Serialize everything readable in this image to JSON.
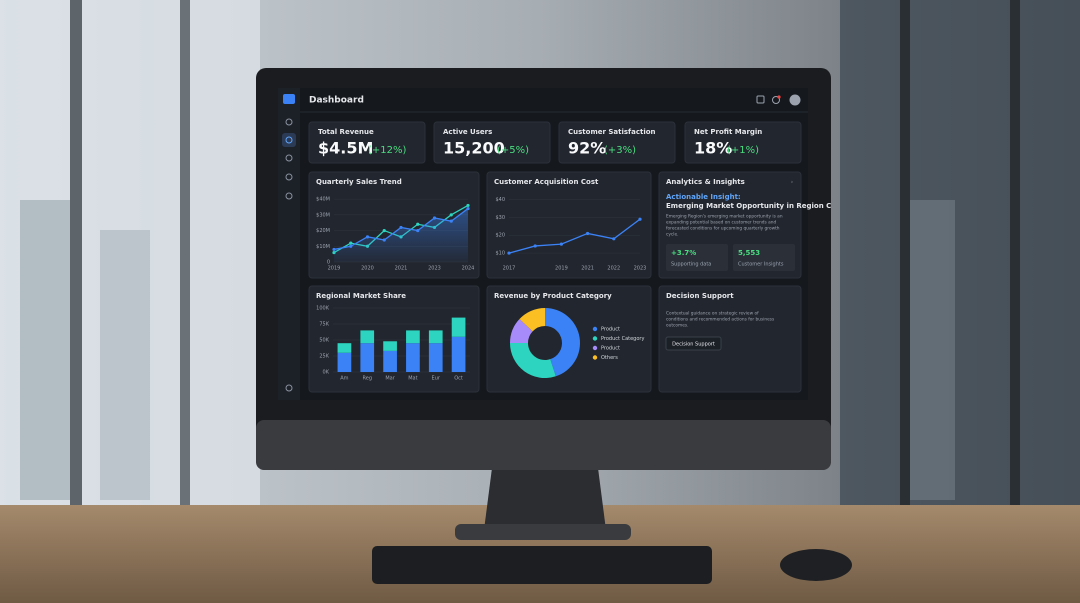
{
  "header": {
    "title": "Dashboard"
  },
  "kpis": [
    {
      "label": "Total Revenue",
      "value": "$4.5M",
      "delta": "(+12%)"
    },
    {
      "label": "Active Users",
      "value": "15,200",
      "delta": "(+5%)"
    },
    {
      "label": "Customer Satisfaction",
      "value": "92%",
      "delta": "(+3%)"
    },
    {
      "label": "Net Profit Margin",
      "value": "18%",
      "delta": "(+1%)"
    }
  ],
  "quarterly_sales": {
    "type": "line",
    "title": "Quarterly Sales Trend",
    "categories": [
      "2019",
      null,
      "2020",
      null,
      "2021",
      null,
      "2023",
      null,
      "2024"
    ],
    "series": [
      {
        "color": "#2dd4bf",
        "values": [
          6,
          12,
          10,
          20,
          16,
          24,
          22,
          30,
          36
        ]
      },
      {
        "color": "#3b82f6",
        "values": [
          8,
          10,
          16,
          14,
          22,
          20,
          28,
          26,
          34
        ],
        "area": true
      }
    ],
    "ylim": [
      0,
      42
    ],
    "yticks": [
      0,
      {
        "value": 10,
        "label": "$10M"
      },
      {
        "value": 20,
        "label": "$20M"
      },
      {
        "value": 30,
        "label": "$30M"
      },
      {
        "value": 40,
        "label": "$40M"
      }
    ],
    "grid": true
  },
  "acquisition_cost": {
    "type": "line",
    "title": "Customer Acquisition Cost",
    "categories": [
      "2017",
      null,
      "2019",
      "2021",
      "2022",
      "2023"
    ],
    "series": [
      {
        "color": "#3b82f6",
        "values": [
          10,
          14,
          15,
          21,
          18,
          29
        ]
      }
    ],
    "ylim": [
      5,
      42
    ],
    "yticks": [
      {
        "value": 10,
        "label": "$10"
      },
      {
        "value": 20,
        "label": "$20"
      },
      {
        "value": 30,
        "label": "$30"
      },
      {
        "value": 40,
        "label": "$40"
      }
    ],
    "grid": true
  },
  "insights": {
    "title": "Analytics & Insights",
    "tag": "Actionable Insight:",
    "headline": "Emerging Market Opportunity in Region C",
    "body": [
      "Emerging Region's emerging market opportunity is an",
      "expanding potential based on customer trends and",
      "forecasted conditions for upcoming quarterly growth",
      "cycle."
    ],
    "stats": [
      {
        "value": "+3.7%",
        "label": "Supporting data"
      },
      {
        "value": "5,553",
        "label": "Customer Insights"
      }
    ]
  },
  "regional_share": {
    "type": "bar",
    "stacked": true,
    "title": "Regional Market Share",
    "categories": [
      "Am",
      "Reg",
      "Mar",
      "Mat",
      "Eur",
      "Oct"
    ],
    "series": [
      {
        "color": "#3b82f6",
        "values": [
          30,
          45,
          33,
          45,
          45,
          55
        ]
      },
      {
        "color": "#2dd4bf",
        "values": [
          15,
          20,
          15,
          20,
          20,
          30
        ]
      }
    ],
    "ylim": [
      0,
      100
    ],
    "yticks": [
      {
        "value": 0,
        "label": "0K"
      },
      {
        "value": 25,
        "label": "25K"
      },
      {
        "value": 50,
        "label": "50K"
      },
      {
        "value": 75,
        "label": "75K"
      },
      {
        "value": 100,
        "label": "100K"
      }
    ],
    "grid": true
  },
  "revenue_category": {
    "type": "pie",
    "donut": true,
    "title": "Revenue by Product Category",
    "categories": [
      "Product",
      "Product Category",
      "Product",
      "Others"
    ],
    "values": [
      45,
      30,
      12,
      13
    ],
    "colors": [
      "#3b82f6",
      "#2dd4bf",
      "#a78bfa",
      "#fbbf24"
    ]
  },
  "decision": {
    "title": "Decision Support",
    "body": [
      "Contextual guidance on strategic review of",
      "conditions and recommended actions for business",
      "outcomes."
    ],
    "button": "Decision Support"
  }
}
